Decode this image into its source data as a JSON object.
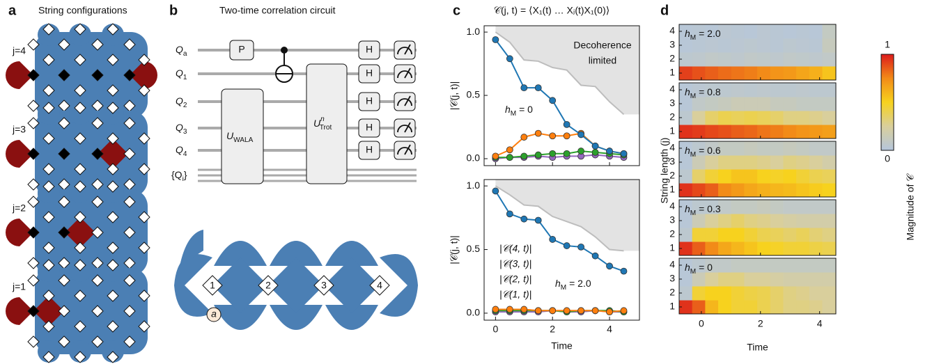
{
  "panel_a": {
    "letter": "a",
    "title": "String configurations",
    "configs": [
      "j=4",
      "j=3",
      "j=2",
      "j=1"
    ]
  },
  "panel_b": {
    "letter": "b",
    "title": "Two-time correlation circuit",
    "wires": [
      [
        "Q",
        "a"
      ],
      [
        "Q",
        "1"
      ],
      [
        "Q",
        "2"
      ],
      [
        "Q",
        "3"
      ],
      [
        "Q",
        "4"
      ]
    ],
    "register": [
      "{Q",
      "i",
      "}"
    ],
    "gate_p": "P",
    "gate_h": "H",
    "gate_wala": [
      "U",
      "WALA"
    ],
    "gate_trot": [
      "U",
      "n",
      "Trot"
    ],
    "sites": [
      "1",
      "2",
      "3",
      "4"
    ],
    "ancilla": "a"
  },
  "panel_c": {
    "letter": "c",
    "title": "𝒞(j, t) = ⟨X₁(t) … Xⱼ(t)X₁(0)⟩"
  },
  "panel_d": {
    "letter": "d"
  },
  "chart_data": [
    {
      "type": "line",
      "ylabel": "|𝒞(j, t)|",
      "annotation": [
        "h",
        "M",
        " = 0"
      ],
      "limit_label": [
        "Decoherence",
        "limited"
      ],
      "x": [
        0,
        0.5,
        1,
        1.5,
        2,
        2.5,
        3,
        3.5,
        4,
        4.5
      ],
      "limit": [
        1.0,
        0.92,
        0.78,
        0.77,
        0.72,
        0.7,
        0.58,
        0.57,
        0.45,
        0.35
      ],
      "series": [
        {
          "color": "#1f77b4",
          "values": [
            0.94,
            0.79,
            0.56,
            0.56,
            0.46,
            0.27,
            0.19,
            0.1,
            0.06,
            0.04
          ]
        },
        {
          "color": "#ff7f0e",
          "values": [
            0.02,
            0.07,
            0.17,
            0.2,
            0.18,
            0.18,
            0.2,
            0.1,
            0.06,
            0.04
          ]
        },
        {
          "color": "#2ca02c",
          "values": [
            0.01,
            0.01,
            0.02,
            0.03,
            0.04,
            0.04,
            0.06,
            0.05,
            0.04,
            0.03
          ]
        },
        {
          "color": "#9467bd",
          "values": [
            0,
            0.01,
            0.01,
            0.02,
            0.01,
            0.02,
            0.02,
            0.03,
            0.02,
            0.01
          ]
        }
      ],
      "xlim": [
        -0.4,
        5.05
      ],
      "ylim": [
        -0.055,
        1.05
      ],
      "xticks": [
        0,
        2,
        4
      ],
      "show_xtick_labels": false,
      "yticks": [
        {
          "value": 0,
          "label": "0.0"
        },
        {
          "value": 0.5,
          "label": "0.5"
        },
        {
          "value": 1,
          "label": "1.0"
        }
      ]
    },
    {
      "type": "line",
      "ylabel": "|𝒞(j, t)|",
      "xlabel": "Time",
      "annotation": [
        "h",
        "M",
        " = 2.0"
      ],
      "x": [
        0,
        0.5,
        1,
        1.5,
        2,
        2.5,
        3,
        3.5,
        4,
        4.5
      ],
      "limit": [
        1.0,
        0.93,
        0.85,
        0.84,
        0.76,
        0.72,
        0.68,
        0.6,
        0.5,
        0.49
      ],
      "series": [
        {
          "name": "|𝒞(1, t)|",
          "color": "#1f77b4",
          "values": [
            0.96,
            0.78,
            0.74,
            0.73,
            0.58,
            0.53,
            0.52,
            0.45,
            0.37,
            0.33
          ]
        },
        {
          "name": "|𝒞(2, t)|",
          "color": "#ff7f0e",
          "values": [
            0.03,
            0.03,
            0.03,
            0.02,
            0.02,
            0.02,
            0.02,
            0.02,
            0.01,
            0.02
          ]
        },
        {
          "name": "|𝒞(3, t)|",
          "color": "#2ca02c",
          "values": [
            0.02,
            0.02,
            0.02,
            0.02,
            0.02,
            0.01,
            0.02,
            0.02,
            0.02,
            0.01
          ]
        },
        {
          "name": "|𝒞(4, t)|",
          "color": "#9467bd",
          "values": [
            0.01,
            0.01,
            0.01,
            0.01,
            0.02,
            0.01,
            0.01,
            0.02,
            0.01,
            0.01
          ]
        }
      ],
      "xlim": [
        -0.4,
        5.05
      ],
      "ylim": [
        -0.055,
        1.05
      ],
      "xticks": [
        0,
        2,
        4
      ],
      "show_xtick_labels": true,
      "yticks": [
        {
          "value": 0,
          "label": "0.0"
        },
        {
          "value": 0.5,
          "label": "0.5"
        },
        {
          "value": 1,
          "label": "1.0"
        }
      ]
    },
    {
      "type": "heatmap",
      "ylabel": "String length (j)",
      "xlabel": "Time",
      "x_edges": [
        -0.75,
        -0.31,
        0.13,
        0.57,
        1.01,
        1.45,
        1.89,
        2.33,
        2.77,
        3.21,
        3.65,
        4.09,
        4.53
      ],
      "y": [
        1,
        2,
        3,
        4
      ],
      "xlim": [
        -0.75,
        4.55
      ],
      "ylim": [
        0.5,
        4.5
      ],
      "xticks": [
        0,
        2,
        4
      ],
      "yticks": [
        1,
        2,
        3,
        4
      ],
      "colormap": [
        "#b5c6dc",
        "#d9cf9c",
        "#f7d21e",
        "#f28b18",
        "#dc1c1c"
      ],
      "colorbar": {
        "lim": [
          0,
          1
        ],
        "ticks": [
          0,
          1
        ],
        "label": "Magnitude of 𝒞"
      },
      "panels": [
        {
          "label": [
            "h",
            "M",
            " = 2.0"
          ],
          "z": [
            [
              0.92,
              0.88,
              0.85,
              0.82,
              0.8,
              0.78,
              0.75,
              0.72,
              0.7,
              0.66,
              0.62,
              0.55
            ],
            [
              0.05,
              0.06,
              0.08,
              0.07,
              0.06,
              0.08,
              0.07,
              0.06,
              0.08,
              0.07,
              0.06,
              0.08
            ],
            [
              0.02,
              0.03,
              0.04,
              0.03,
              0.04,
              0.05,
              0.04,
              0.03,
              0.05,
              0.04,
              0.03,
              0.12
            ],
            [
              0.02,
              0.03,
              0.02,
              0.04,
              0.03,
              0.02,
              0.04,
              0.03,
              0.02,
              0.03,
              0.02,
              0.1
            ]
          ]
        },
        {
          "label": [
            "h",
            "M",
            " = 0.8"
          ],
          "z": [
            [
              0.95,
              0.93,
              0.9,
              0.88,
              0.85,
              0.83,
              0.8,
              0.78,
              0.75,
              0.72,
              0.7,
              0.68
            ],
            [
              0.05,
              0.25,
              0.35,
              0.4,
              0.38,
              0.4,
              0.38,
              0.35,
              0.3,
              0.3,
              0.28,
              0.25
            ],
            [
              0.02,
              0.08,
              0.1,
              0.12,
              0.15,
              0.15,
              0.15,
              0.12,
              0.12,
              0.1,
              0.1,
              0.1
            ],
            [
              0.02,
              0.04,
              0.05,
              0.05,
              0.06,
              0.05,
              0.06,
              0.05,
              0.05,
              0.06,
              0.05,
              0.05
            ]
          ]
        },
        {
          "label": [
            "h",
            "M",
            " = 0.6"
          ],
          "z": [
            [
              0.95,
              0.9,
              0.85,
              0.75,
              0.7,
              0.65,
              0.62,
              0.6,
              0.58,
              0.55,
              0.52,
              0.5
            ],
            [
              0.05,
              0.35,
              0.45,
              0.5,
              0.55,
              0.55,
              0.5,
              0.48,
              0.5,
              0.45,
              0.4,
              0.38
            ],
            [
              0.02,
              0.15,
              0.25,
              0.3,
              0.3,
              0.3,
              0.28,
              0.25,
              0.3,
              0.28,
              0.25,
              0.2
            ],
            [
              0.02,
              0.05,
              0.08,
              0.1,
              0.1,
              0.12,
              0.1,
              0.1,
              0.12,
              0.1,
              0.08,
              0.08
            ]
          ]
        },
        {
          "label": [
            "h",
            "M",
            " = 0.3"
          ],
          "z": [
            [
              0.95,
              0.85,
              0.75,
              0.65,
              0.6,
              0.55,
              0.5,
              0.48,
              0.45,
              0.45,
              0.42,
              0.4
            ],
            [
              0.05,
              0.45,
              0.45,
              0.5,
              0.5,
              0.45,
              0.4,
              0.38,
              0.35,
              0.38,
              0.33,
              0.3
            ],
            [
              0.02,
              0.15,
              0.25,
              0.3,
              0.35,
              0.3,
              0.28,
              0.25,
              0.22,
              0.2,
              0.2,
              0.2
            ],
            [
              0.02,
              0.05,
              0.05,
              0.08,
              0.1,
              0.1,
              0.12,
              0.1,
              0.08,
              0.08,
              0.08,
              0.08
            ]
          ]
        },
        {
          "label": [
            "h",
            "M",
            " = 0"
          ],
          "z": [
            [
              0.95,
              0.85,
              0.6,
              0.5,
              0.45,
              0.45,
              0.4,
              0.35,
              0.3,
              0.3,
              0.28,
              0.25
            ],
            [
              0.05,
              0.45,
              0.5,
              0.5,
              0.45,
              0.42,
              0.4,
              0.35,
              0.3,
              0.28,
              0.25,
              0.25
            ],
            [
              0.02,
              0.15,
              0.25,
              0.3,
              0.3,
              0.25,
              0.25,
              0.22,
              0.2,
              0.2,
              0.2,
              0.2
            ],
            [
              0.02,
              0.05,
              0.08,
              0.08,
              0.1,
              0.1,
              0.1,
              0.1,
              0.1,
              0.1,
              0.1,
              0.1
            ]
          ]
        }
      ]
    }
  ]
}
